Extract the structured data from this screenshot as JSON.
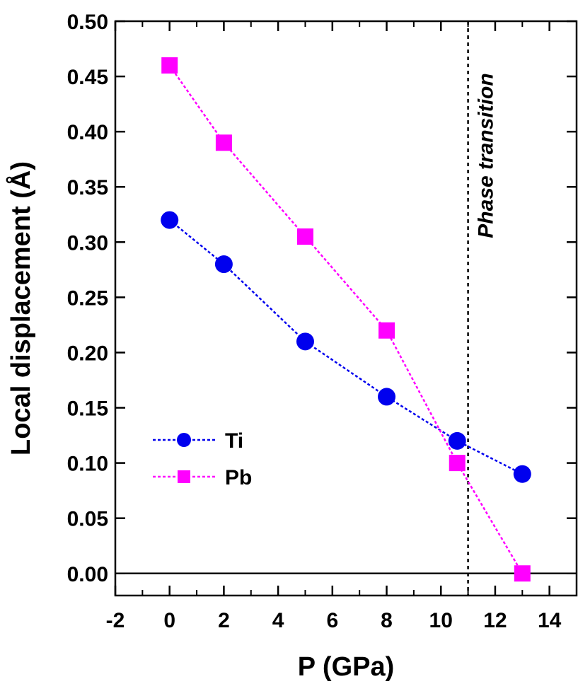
{
  "chart_data": {
    "type": "line",
    "xlabel": "P (GPa)",
    "ylabel": "Local displacement (Å)",
    "xlim": [
      -2,
      15
    ],
    "ylim": [
      -0.02,
      0.5
    ],
    "xticks": [
      "-2",
      "0",
      "2",
      "4",
      "6",
      "8",
      "10",
      "12",
      "14"
    ],
    "xtick_values": [
      -2,
      0,
      2,
      4,
      6,
      8,
      10,
      12,
      14
    ],
    "yticks": [
      "0.00",
      "0.05",
      "0.10",
      "0.15",
      "0.20",
      "0.25",
      "0.30",
      "0.35",
      "0.40",
      "0.45",
      "0.50"
    ],
    "ytick_values": [
      0,
      0.05,
      0.1,
      0.15,
      0.2,
      0.25,
      0.3,
      0.35,
      0.4,
      0.45,
      0.5
    ],
    "zero_line": 0,
    "series": [
      {
        "name": "Ti",
        "marker": "circle",
        "color": "#0000ee",
        "x": [
          0,
          2,
          5,
          8,
          10.6,
          13
        ],
        "y": [
          0.32,
          0.28,
          0.21,
          0.16,
          0.12,
          0.09
        ]
      },
      {
        "name": "Pb",
        "marker": "square",
        "color": "#ff00ff",
        "x": [
          0,
          2,
          5,
          8,
          10.6,
          13
        ],
        "y": [
          0.46,
          0.39,
          0.305,
          0.22,
          0.1,
          0.0
        ]
      }
    ],
    "annotations": [
      {
        "text": "Phase transition",
        "x": 11,
        "style": "vertical dashed line"
      }
    ],
    "legend_position": "bottom-left",
    "grid": false
  }
}
